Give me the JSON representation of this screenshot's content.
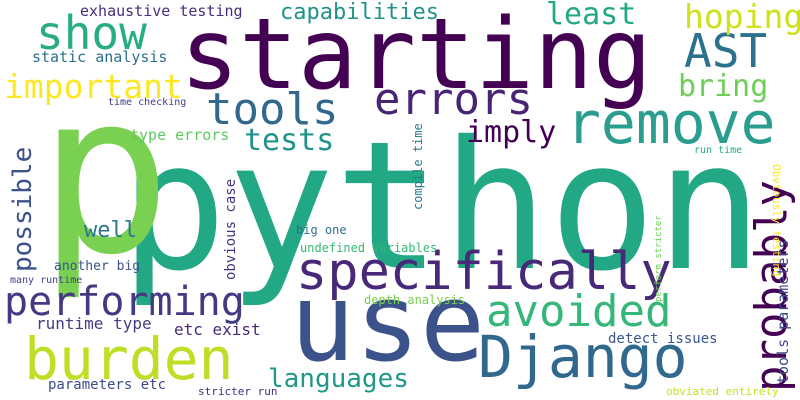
{
  "words": [
    {
      "text": "python",
      "color": "#22a884"
    },
    {
      "text": "p",
      "color": "#7ad151"
    },
    {
      "text": "starting",
      "color": "#440154"
    },
    {
      "text": "use",
      "color": "#3b528b"
    },
    {
      "text": "specifically",
      "color": "#482878"
    },
    {
      "text": "Django",
      "color": "#31688e"
    },
    {
      "text": "burden",
      "color": "#bddf26"
    },
    {
      "text": "performing",
      "color": "#443983"
    },
    {
      "text": "remove",
      "color": "#2a9d8f"
    },
    {
      "text": "probably",
      "color": "#440154"
    },
    {
      "text": "errors",
      "color": "#482475"
    },
    {
      "text": "avoided",
      "color": "#35b779"
    },
    {
      "text": "show",
      "color": "#27ad81"
    },
    {
      "text": "tools",
      "color": "#31688e"
    },
    {
      "text": "AST",
      "color": "#2c728e"
    },
    {
      "text": "important",
      "color": "#fde725"
    },
    {
      "text": "hoping",
      "color": "#d0e11c"
    },
    {
      "text": "least",
      "color": "#22a884"
    },
    {
      "text": "capabilities",
      "color": "#21918c"
    },
    {
      "text": "tests",
      "color": "#21918c"
    },
    {
      "text": "imply",
      "color": "#440154"
    },
    {
      "text": "bring",
      "color": "#6ece58"
    },
    {
      "text": "languages",
      "color": "#1f988b"
    },
    {
      "text": "possible",
      "color": "#3b528b"
    },
    {
      "text": "well",
      "color": "#2a788e"
    },
    {
      "text": "exhaustive testing",
      "color": "#472d7b"
    },
    {
      "text": "static analysis",
      "color": "#2c728e"
    },
    {
      "text": "time checking",
      "color": "#443983"
    },
    {
      "text": "type errors",
      "color": "#5ec962"
    },
    {
      "text": "compile time",
      "color": "#2a788e"
    },
    {
      "text": "obvious case",
      "color": "#46337e"
    },
    {
      "text": "runtime type",
      "color": "#433e85"
    },
    {
      "text": "etc exist",
      "color": "#482878"
    },
    {
      "text": "another big",
      "color": "#3b528b"
    },
    {
      "text": "many runtime",
      "color": "#414487"
    },
    {
      "text": "parameters etc",
      "color": "#3e4a89"
    },
    {
      "text": "stricter run",
      "color": "#472a7a"
    },
    {
      "text": "big one",
      "color": "#2d708e"
    },
    {
      "text": "undefined variables",
      "color": "#35b779"
    },
    {
      "text": "depth analysis",
      "color": "#7ad151"
    },
    {
      "text": "detect issues",
      "color": "#39568c"
    },
    {
      "text": "perform stricter",
      "color": "#6ece58"
    },
    {
      "text": "run time",
      "color": "#22a884"
    },
    {
      "text": "Obviously testing",
      "color": "#fde725"
    },
    {
      "text": "tools parameters",
      "color": "#3e4a89"
    },
    {
      "text": "obviated entirely",
      "color": "#c8e020"
    }
  ]
}
